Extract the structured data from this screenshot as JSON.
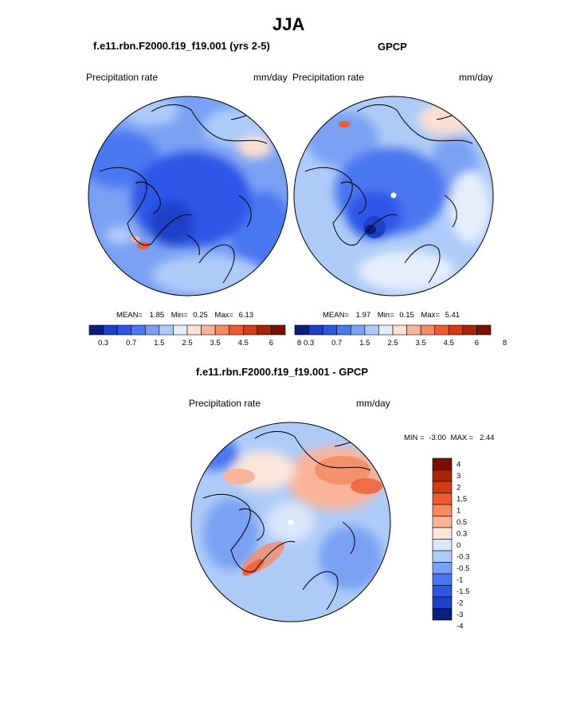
{
  "figure_title": "JJA",
  "colors": {
    "palette_11": [
      "#0a1f7a",
      "#1e3fc8",
      "#2f56e8",
      "#4a77f0",
      "#7aa0f4",
      "#aecbf8",
      "#e6eefc",
      "#fce0d2",
      "#f9b39a",
      "#f58a65",
      "#ee5b31",
      "#d63a15",
      "#a82409",
      "#7a0f04"
    ],
    "palette_diff": [
      "#0a1f7a",
      "#1e3fc8",
      "#2f56e8",
      "#4a77f0",
      "#7aa0f4",
      "#aecbf8",
      "#dbe7fb",
      "#fbe6db",
      "#f9b39a",
      "#f58a65",
      "#ee5b31",
      "#d63a15",
      "#a82409",
      "#7a0f04"
    ]
  },
  "chart_data": [
    {
      "type": "heatmap",
      "projection": "north-polar-stereographic",
      "title": "f.e11.rbn.F2000.f19_f19.001 (yrs 2-5)",
      "left_label": "Precipitation rate",
      "right_label": "mm/day",
      "stats": {
        "mean_label": "MEAN=",
        "mean": "1.85",
        "min_label": "Min=",
        "min": "0.25",
        "max_label": "Max=",
        "max": "6.13"
      },
      "colorbar_ticks": [
        "0.3",
        "0.7",
        "1.5",
        "2.5",
        "3.5",
        "4.5",
        "6",
        "8"
      ],
      "levels": [
        0.3,
        0.5,
        0.7,
        1,
        1.5,
        2,
        2.5,
        3,
        3.5,
        4,
        4.5,
        5,
        6,
        7,
        8
      ]
    },
    {
      "type": "heatmap",
      "projection": "north-polar-stereographic",
      "title": "GPCP",
      "left_label": "Precipitation rate",
      "right_label": "mm/day",
      "stats": {
        "mean_label": "MEAN=",
        "mean": "1.97",
        "min_label": "Min=",
        "min": "0.15",
        "max_label": "Max=",
        "max": "5.41"
      },
      "colorbar_ticks": [
        "0.3",
        "0.7",
        "1.5",
        "2.5",
        "3.5",
        "4.5",
        "6",
        "8"
      ],
      "levels": [
        0.3,
        0.5,
        0.7,
        1,
        1.5,
        2,
        2.5,
        3,
        3.5,
        4,
        4.5,
        5,
        6,
        7,
        8
      ]
    },
    {
      "type": "heatmap",
      "projection": "north-polar-stereographic",
      "title": "f.e11.rbn.F2000.f19_f19.001 - GPCP",
      "left_label": "Precipitation rate",
      "right_label": "mm/day",
      "stats": {
        "min_label": "MIN =",
        "min": "-3.00",
        "max_label": "MAX =",
        "max": "2.44"
      },
      "colorbar_ticks": [
        "4",
        "3",
        "2",
        "1.5",
        "1",
        "0.5",
        "0.3",
        "0",
        "-0.3",
        "-0.5",
        "-1",
        "-1.5",
        "-2",
        "-3",
        "-4"
      ]
    }
  ]
}
